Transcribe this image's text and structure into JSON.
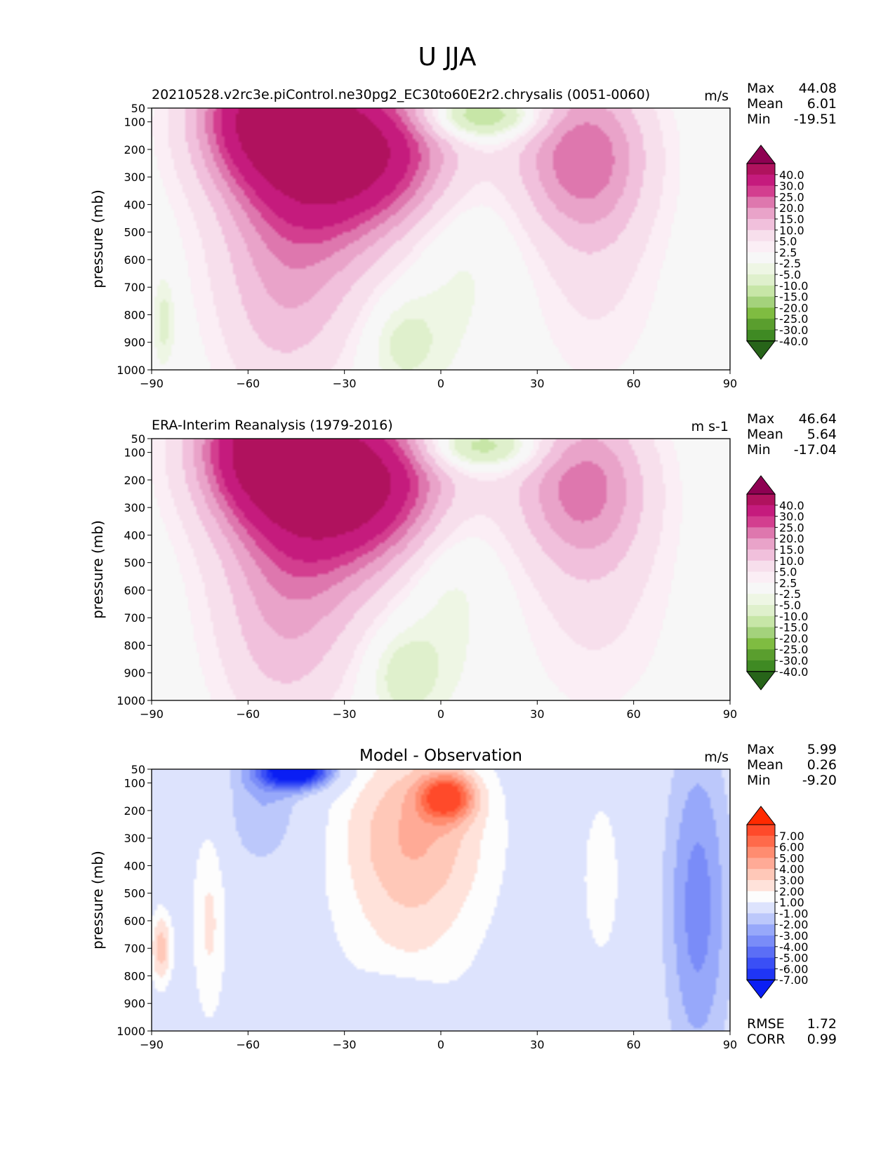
{
  "suptitle": "U JJA",
  "panels": [
    {
      "title_left": "20210528.v2rc3e.piControl.ne30pg2_EC30to60E2r2.chrysalis (0051-0060)",
      "title_center": "",
      "units": "m/s",
      "stats": [
        {
          "label": "Max",
          "value": "44.08"
        },
        {
          "label": "Mean",
          "value": "6.01"
        },
        {
          "label": "Min",
          "value": "-19.51"
        }
      ],
      "colorbar_labels": [
        "40.0",
        "30.0",
        "25.0",
        "20.0",
        "15.0",
        "10.0",
        "5.0",
        "2.5",
        "-2.5",
        "-5.0",
        "-10.0",
        "-15.0",
        "-20.0",
        "-25.0",
        "-30.0",
        "-40.0"
      ],
      "colorbar_colors": [
        "#8e0152",
        "#b0125e",
        "#c51b7d",
        "#d33e8f",
        "#de77ae",
        "#e9a3c9",
        "#f1c0dc",
        "#f7dfec",
        "#fbeef5",
        "#f7f7f7",
        "#eef6e4",
        "#dff0cc",
        "#c7e6a7",
        "#a4d27c",
        "#7fbc41",
        "#5a9e2e",
        "#3f8a23",
        "#276419"
      ],
      "extra_stats": []
    },
    {
      "title_left": "ERA-Interim Reanalysis (1979-2016)",
      "title_center": "",
      "units": "m s-1",
      "stats": [
        {
          "label": "Max",
          "value": "46.64"
        },
        {
          "label": "Mean",
          "value": "5.64"
        },
        {
          "label": "Min",
          "value": "-17.04"
        }
      ],
      "colorbar_labels": [
        "40.0",
        "30.0",
        "25.0",
        "20.0",
        "15.0",
        "10.0",
        "5.0",
        "2.5",
        "-2.5",
        "-5.0",
        "-10.0",
        "-15.0",
        "-20.0",
        "-25.0",
        "-30.0",
        "-40.0"
      ],
      "colorbar_colors": [
        "#8e0152",
        "#b0125e",
        "#c51b7d",
        "#d33e8f",
        "#de77ae",
        "#e9a3c9",
        "#f1c0dc",
        "#f7dfec",
        "#fbeef5",
        "#f7f7f7",
        "#eef6e4",
        "#dff0cc",
        "#c7e6a7",
        "#a4d27c",
        "#7fbc41",
        "#5a9e2e",
        "#3f8a23",
        "#276419"
      ],
      "extra_stats": []
    },
    {
      "title_left": "",
      "title_center": "Model - Observation",
      "units": "m/s",
      "stats": [
        {
          "label": "Max",
          "value": "5.99"
        },
        {
          "label": "Mean",
          "value": "0.26"
        },
        {
          "label": "Min",
          "value": "-9.20"
        }
      ],
      "colorbar_labels": [
        "7.00",
        "6.00",
        "5.00",
        "4.00",
        "3.00",
        "2.00",
        "1.00",
        "-1.00",
        "-2.00",
        "-3.00",
        "-4.00",
        "-5.00",
        "-6.00",
        "-7.00"
      ],
      "colorbar_colors": [
        "#ff2a00",
        "#ff4a2a",
        "#ff6a4a",
        "#ff8c70",
        "#ffaa96",
        "#ffc8b8",
        "#ffe2da",
        "#fdfdfd",
        "#dde3fd",
        "#bcc8fb",
        "#97a8fa",
        "#7a8cf8",
        "#5b6ef6",
        "#3a4ff6",
        "#1f35f5",
        "#0a1ef4"
      ],
      "extra_stats": [
        {
          "label": "RMSE",
          "value": "1.72"
        },
        {
          "label": "CORR",
          "value": "0.99"
        }
      ]
    }
  ],
  "chart_data": [
    {
      "type": "heatmap",
      "title": "20210528.v2rc3e.piControl.ne30pg2_EC30to60E2r2.chrysalis (0051-0060)",
      "ylabel": "pressure (mb)",
      "xlim": [
        -90,
        90
      ],
      "ylim": [
        1000,
        50
      ],
      "x_ticks": [
        -90,
        -60,
        -30,
        0,
        30,
        60,
        90
      ],
      "y_ticks": [
        50,
        100,
        200,
        300,
        400,
        500,
        600,
        700,
        800,
        900,
        1000
      ],
      "levels": [
        -40,
        -30,
        -25,
        -20,
        -15,
        -10,
        -5,
        -2.5,
        2.5,
        5,
        10,
        15,
        20,
        25,
        30,
        40
      ],
      "features": [
        {
          "lat": -29,
          "p": 200,
          "value": 44,
          "sx": 22,
          "sy": 190
        },
        {
          "lat": -55,
          "p": 60,
          "value": 32,
          "sx": 14,
          "sy": 160
        },
        {
          "lat": -42,
          "p": 450,
          "value": 14,
          "sx": 18,
          "sy": 280
        },
        {
          "lat": -50,
          "p": 800,
          "value": 8,
          "sx": 14,
          "sy": 280
        },
        {
          "lat": 44,
          "p": 210,
          "value": 22,
          "sx": 14,
          "sy": 200
        },
        {
          "lat": 48,
          "p": 600,
          "value": 6,
          "sx": 14,
          "sy": 320
        },
        {
          "lat": 12,
          "p": 80,
          "value": -19,
          "sx": 14,
          "sy": 60
        },
        {
          "lat": 5,
          "p": 500,
          "value": -4,
          "sx": 12,
          "sy": 360
        },
        {
          "lat": -12,
          "p": 900,
          "value": -7,
          "sx": 8,
          "sy": 120
        },
        {
          "lat": -86,
          "p": 820,
          "value": -7,
          "sx": 2.5,
          "sy": 120
        }
      ],
      "stats": {
        "max": 44.08,
        "mean": 6.01,
        "min": -19.51
      },
      "units": "m/s"
    },
    {
      "type": "heatmap",
      "title": "ERA-Interim Reanalysis (1979-2016)",
      "ylabel": "pressure (mb)",
      "xlim": [
        -90,
        90
      ],
      "ylim": [
        1000,
        50
      ],
      "x_ticks": [
        -90,
        -60,
        -30,
        0,
        30,
        60,
        90
      ],
      "y_ticks": [
        50,
        100,
        200,
        300,
        400,
        500,
        600,
        700,
        800,
        900,
        1000
      ],
      "levels": [
        -40,
        -30,
        -25,
        -20,
        -15,
        -10,
        -5,
        -2.5,
        2.5,
        5,
        10,
        15,
        20,
        25,
        30,
        40
      ],
      "features": [
        {
          "lat": -30,
          "p": 200,
          "value": 46,
          "sx": 22,
          "sy": 190
        },
        {
          "lat": -55,
          "p": 60,
          "value": 34,
          "sx": 14,
          "sy": 160
        },
        {
          "lat": -42,
          "p": 450,
          "value": 14,
          "sx": 18,
          "sy": 280
        },
        {
          "lat": -50,
          "p": 800,
          "value": 8,
          "sx": 14,
          "sy": 280
        },
        {
          "lat": 44,
          "p": 210,
          "value": 20,
          "sx": 14,
          "sy": 200
        },
        {
          "lat": 48,
          "p": 600,
          "value": 6,
          "sx": 16,
          "sy": 320
        },
        {
          "lat": 12,
          "p": 80,
          "value": -17,
          "sx": 14,
          "sy": 60
        },
        {
          "lat": 2,
          "p": 500,
          "value": -5,
          "sx": 10,
          "sy": 330
        },
        {
          "lat": -12,
          "p": 900,
          "value": -8,
          "sx": 8,
          "sy": 120
        }
      ],
      "stats": {
        "max": 46.64,
        "mean": 5.64,
        "min": -17.04
      },
      "units": "m s-1"
    },
    {
      "type": "heatmap",
      "title": "Model - Observation",
      "ylabel": "pressure (mb)",
      "xlim": [
        -90,
        90
      ],
      "ylim": [
        1000,
        50
      ],
      "x_ticks": [
        -90,
        -60,
        -30,
        0,
        30,
        60,
        90
      ],
      "y_ticks": [
        50,
        100,
        200,
        300,
        400,
        500,
        600,
        700,
        800,
        900,
        1000
      ],
      "levels": [
        -7,
        -6,
        -5,
        -4,
        -3,
        -2,
        -1,
        1,
        2,
        3,
        4,
        5,
        6,
        7
      ],
      "features": [
        {
          "lat": -45,
          "p": 55,
          "value": -9.2,
          "sx": 8,
          "sy": 45
        },
        {
          "lat": -55,
          "p": 180,
          "value": -2,
          "sx": 9,
          "sy": 170
        },
        {
          "lat": -8,
          "p": 250,
          "value": 3.5,
          "sx": 17,
          "sy": 230
        },
        {
          "lat": 2,
          "p": 150,
          "value": 6,
          "sx": 6,
          "sy": 60
        },
        {
          "lat": -10,
          "p": 650,
          "value": 1.6,
          "sx": 18,
          "sy": 280
        },
        {
          "lat": 80,
          "p": 550,
          "value": -3.5,
          "sx": 7,
          "sy": 420
        },
        {
          "lat": 50,
          "p": 450,
          "value": 1.6,
          "sx": 5,
          "sy": 250
        },
        {
          "lat": -72,
          "p": 600,
          "value": 2.2,
          "sx": 4,
          "sy": 280
        },
        {
          "lat": -87,
          "p": 700,
          "value": 3.5,
          "sx": 2.5,
          "sy": 100
        },
        {
          "lat": -15,
          "p": 900,
          "value": -1.5,
          "sx": 10,
          "sy": 70
        }
      ],
      "stats": {
        "max": 5.99,
        "mean": 0.26,
        "min": -9.2,
        "rmse": 1.72,
        "corr": 0.99
      },
      "units": "m/s"
    }
  ]
}
